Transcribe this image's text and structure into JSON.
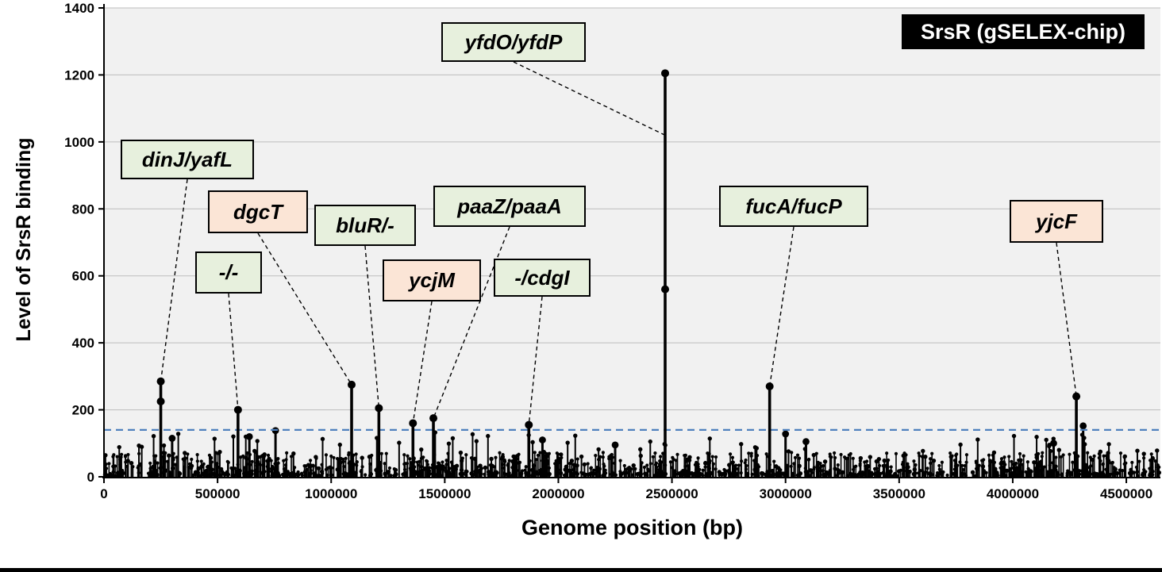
{
  "title_box": {
    "label": "SrsR (gSELEX-chip)"
  },
  "axes": {
    "xlabel": "Genome position (bp)",
    "ylabel": "Level of SrsR binding",
    "xlim": [
      0,
      4650000
    ],
    "ylim": [
      0,
      1400
    ],
    "xticks": [
      0,
      500000,
      1000000,
      1500000,
      2000000,
      2500000,
      3000000,
      3500000,
      4000000,
      4500000
    ],
    "xtick_labels": [
      "0",
      "500000",
      "1000000",
      "1500000",
      "2000000",
      "2500000",
      "3000000",
      "3500000",
      "4000000",
      "4500000"
    ],
    "yticks": [
      0,
      200,
      400,
      600,
      800,
      1000,
      1200,
      1400
    ],
    "ytick_labels": [
      "0",
      "200",
      "400",
      "600",
      "800",
      "1000",
      "1200",
      "1400"
    ],
    "grid": "horizontal",
    "plot_bg": "#f1f1f1"
  },
  "chart_data": {
    "type": "lollipop",
    "title": "SrsR (gSELEX-chip)",
    "xlabel": "Genome position (bp)",
    "ylabel": "Level of SrsR binding",
    "xlim": [
      0,
      4650000
    ],
    "ylim": [
      0,
      1400
    ],
    "threshold": {
      "value": 140,
      "color": "#4f81bd",
      "style": "dashed"
    },
    "peaks": [
      {
        "label": "dinJ/yafL",
        "x": 250000,
        "dots": [
          285,
          225
        ],
        "box": "green"
      },
      {
        "label": "-/-",
        "x": 590000,
        "dots": [
          200
        ],
        "box": "green"
      },
      {
        "label": "dgcT",
        "x": 1090000,
        "dots": [
          275
        ],
        "box": "pink"
      },
      {
        "label": "bluR/-",
        "x": 1210000,
        "dots": [
          205
        ],
        "box": "green"
      },
      {
        "label": "ycjM",
        "x": 1360000,
        "dots": [
          160
        ],
        "box": "pink"
      },
      {
        "label": "paaZ/paaA",
        "x": 1450000,
        "dots": [
          175
        ],
        "box": "green"
      },
      {
        "label": "-/cdgI",
        "x": 1870000,
        "dots": [
          155
        ],
        "box": "green"
      },
      {
        "label": "yfdO/yfdP",
        "x": 2470000,
        "dots": [
          1205,
          560
        ],
        "leader_y": 1020,
        "box": "green"
      },
      {
        "label": "fucA/fucP",
        "x": 2930000,
        "dots": [
          270
        ],
        "box": "green"
      },
      {
        "label": "yjcF",
        "x": 4280000,
        "dots": [
          240
        ],
        "box": "pink"
      }
    ],
    "minor_peaks": [
      [
        300000,
        115
      ],
      [
        640000,
        120
      ],
      [
        755000,
        138
      ],
      [
        1930000,
        110
      ],
      [
        2250000,
        95
      ],
      [
        3000000,
        128
      ],
      [
        3090000,
        105
      ],
      [
        4180000,
        100
      ],
      [
        4310000,
        152
      ]
    ],
    "noise": {
      "seed": 11,
      "dense_count": 950,
      "dense_max": 70,
      "spike_count": 330,
      "spike_max": 125
    }
  },
  "colors": {
    "green_box": "#e7f0dd",
    "pink_box": "#fbe5d6",
    "peak": "#000000",
    "threshold": "#4f81bd",
    "title_box_bg": "#000000",
    "title_box_text": "#ffffff"
  }
}
